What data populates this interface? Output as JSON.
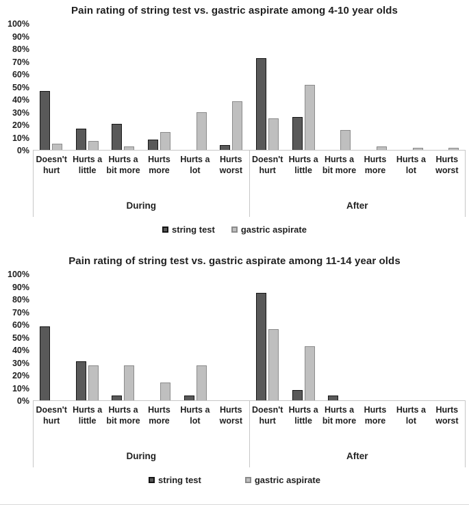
{
  "figure": {
    "background": "#ffffff",
    "series_styles": {
      "string_test": {
        "fill": "#595959",
        "border": "#141414"
      },
      "gastric_aspirate": {
        "fill": "#bfbfbf",
        "border": "#8a8a8a"
      },
      "axis_line": "#c6c6c6"
    }
  },
  "chart_data": [
    {
      "type": "bar",
      "title": "Pain rating of string test vs. gastric aspirate among 4-10 year olds",
      "xlabel": "",
      "ylabel": "",
      "ylim": [
        0,
        100
      ],
      "grid": false,
      "legend_position": "bottom",
      "ytick_labels": [
        "100%",
        "90%",
        "80%",
        "70%",
        "60%",
        "50%",
        "40%",
        "30%",
        "20%",
        "10%",
        "0%"
      ],
      "categories": [
        "Doesn't hurt",
        "Hurts a little",
        "Hurts a bit more",
        "Hurts more",
        "Hurts a lot",
        "Hurts worst"
      ],
      "groups": [
        {
          "label": "During",
          "series": [
            {
              "name": "string test",
              "values": [
                47,
                17,
                21,
                8,
                0,
                4
              ]
            },
            {
              "name": "gastric aspirate",
              "values": [
                5,
                7,
                3,
                14,
                30,
                39
              ]
            }
          ]
        },
        {
          "label": "After",
          "series": [
            {
              "name": "string test",
              "values": [
                73,
                26,
                0,
                0,
                0,
                0
              ]
            },
            {
              "name": "gastric aspirate",
              "values": [
                25,
                52,
                16,
                3,
                1.5,
                1.5
              ]
            }
          ]
        }
      ],
      "legend": [
        "string test",
        "gastric aspirate"
      ]
    },
    {
      "type": "bar",
      "title": "Pain rating of string test vs. gastric aspirate among 11-14 year olds",
      "xlabel": "",
      "ylabel": "",
      "ylim": [
        0,
        100
      ],
      "grid": false,
      "legend_position": "bottom",
      "ytick_labels": [
        "100%",
        "90%",
        "80%",
        "70%",
        "60%",
        "50%",
        "40%",
        "30%",
        "20%",
        "10%",
        "0%"
      ],
      "categories": [
        "Doesn't hurt",
        "Hurts a little",
        "Hurts a bit more",
        "Hurts more",
        "Hurts a lot",
        "Hurts worst"
      ],
      "groups": [
        {
          "label": "During",
          "series": [
            {
              "name": "string test",
              "values": [
                59,
                31,
                4,
                0,
                4,
                0
              ]
            },
            {
              "name": "gastric aspirate",
              "values": [
                0,
                28,
                28,
                14,
                28,
                0
              ]
            }
          ]
        },
        {
          "label": "After",
          "series": [
            {
              "name": "string test",
              "values": [
                86,
                8,
                4,
                0,
                0,
                0
              ]
            },
            {
              "name": "gastric aspirate",
              "values": [
                57,
                43,
                0,
                0,
                0,
                0
              ]
            }
          ]
        }
      ],
      "legend": [
        "string test",
        "gastric aspirate"
      ]
    }
  ]
}
